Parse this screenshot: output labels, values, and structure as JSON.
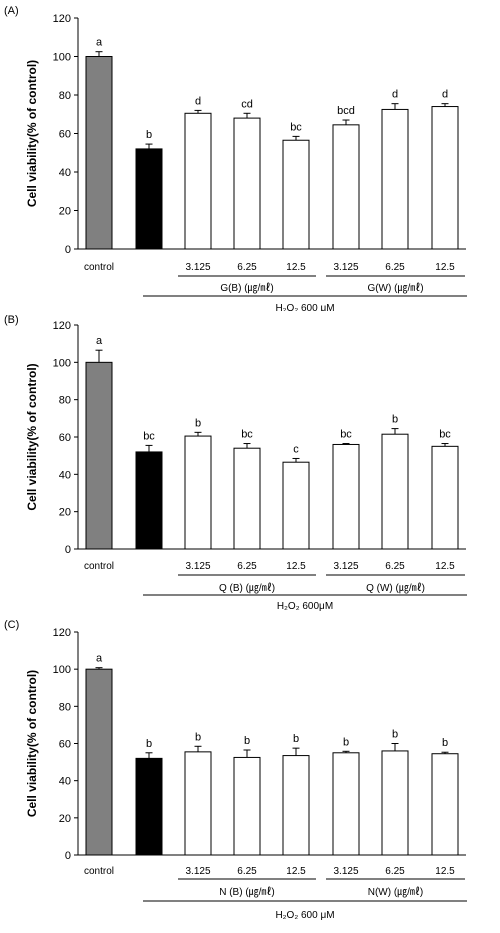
{
  "chart_data": [
    {
      "type": "bar",
      "panel_label": "(A)",
      "ylabel": "Cell viability(% of control)",
      "ylim": [
        0,
        120
      ],
      "yticks": [
        0,
        20,
        40,
        60,
        80,
        100,
        120
      ],
      "categories": [
        "control",
        "",
        "3.125",
        "6.25",
        "12.5",
        "3.125",
        "6.25",
        "12.5"
      ],
      "values": [
        100,
        52,
        70.5,
        68,
        56.5,
        64.5,
        72.5,
        74
      ],
      "errors": [
        2.5,
        2.5,
        1.5,
        2.5,
        2,
        2.5,
        3,
        1.5
      ],
      "letters": [
        "a",
        "b",
        "d",
        "cd",
        "bc",
        "bcd",
        "d",
        "d"
      ],
      "bar_colors": [
        "#808080",
        "#000000",
        "#ffffff",
        "#ffffff",
        "#ffffff",
        "#ffffff",
        "#ffffff",
        "#ffffff"
      ],
      "groups": [
        {
          "label": "G(B) (㎍/㎖)",
          "from": 2,
          "to": 4
        },
        {
          "label": "G(W) (㎍/㎖)",
          "from": 5,
          "to": 7
        }
      ],
      "treatment_label": "H₂O₂ 600 μM"
    },
    {
      "type": "bar",
      "panel_label": "(B)",
      "ylabel": "Cell viability(% of control)",
      "ylim": [
        0,
        120
      ],
      "yticks": [
        0,
        20,
        40,
        60,
        80,
        100,
        120
      ],
      "categories": [
        "control",
        "",
        "3.125",
        "6.25",
        "12.5",
        "3.125",
        "6.25",
        "12.5"
      ],
      "values": [
        100,
        52,
        60.5,
        54,
        46.5,
        56,
        61.5,
        55
      ],
      "errors": [
        6.5,
        3.5,
        2,
        2.5,
        2,
        0.5,
        3,
        1.5
      ],
      "letters": [
        "a",
        "bc",
        "b",
        "bc",
        "c",
        "bc",
        "b",
        "bc"
      ],
      "bar_colors": [
        "#808080",
        "#000000",
        "#ffffff",
        "#ffffff",
        "#ffffff",
        "#ffffff",
        "#ffffff",
        "#ffffff"
      ],
      "groups": [
        {
          "label": "Q (B) (㎍/㎖)",
          "from": 2,
          "to": 4
        },
        {
          "label": "Q (W) (㎍/㎖)",
          "from": 5,
          "to": 7
        }
      ],
      "treatment_label": "H₂O₂ 600μM"
    },
    {
      "type": "bar",
      "panel_label": "(C)",
      "ylabel": "Cell viability(% of control)",
      "ylim": [
        0,
        120
      ],
      "yticks": [
        0,
        20,
        40,
        60,
        80,
        100,
        120
      ],
      "categories": [
        "control",
        "",
        "3.125",
        "6.25",
        "12.5",
        "3.125",
        "6.25",
        "12.5"
      ],
      "values": [
        100,
        52,
        55.5,
        52.5,
        53.5,
        55,
        56,
        54.5
      ],
      "errors": [
        0.8,
        3,
        3,
        4,
        4,
        0.8,
        4,
        0.8
      ],
      "letters": [
        "a",
        "b",
        "b",
        "b",
        "b",
        "b",
        "b",
        "b"
      ],
      "bar_colors": [
        "#808080",
        "#000000",
        "#ffffff",
        "#ffffff",
        "#ffffff",
        "#ffffff",
        "#ffffff",
        "#ffffff"
      ],
      "groups": [
        {
          "label": "N (B) (㎍/㎖)",
          "from": 2,
          "to": 4
        },
        {
          "label": "N(W) (㎍/㎖)",
          "from": 5,
          "to": 7
        }
      ],
      "treatment_label": "H₂O₂ 600 μM"
    }
  ]
}
